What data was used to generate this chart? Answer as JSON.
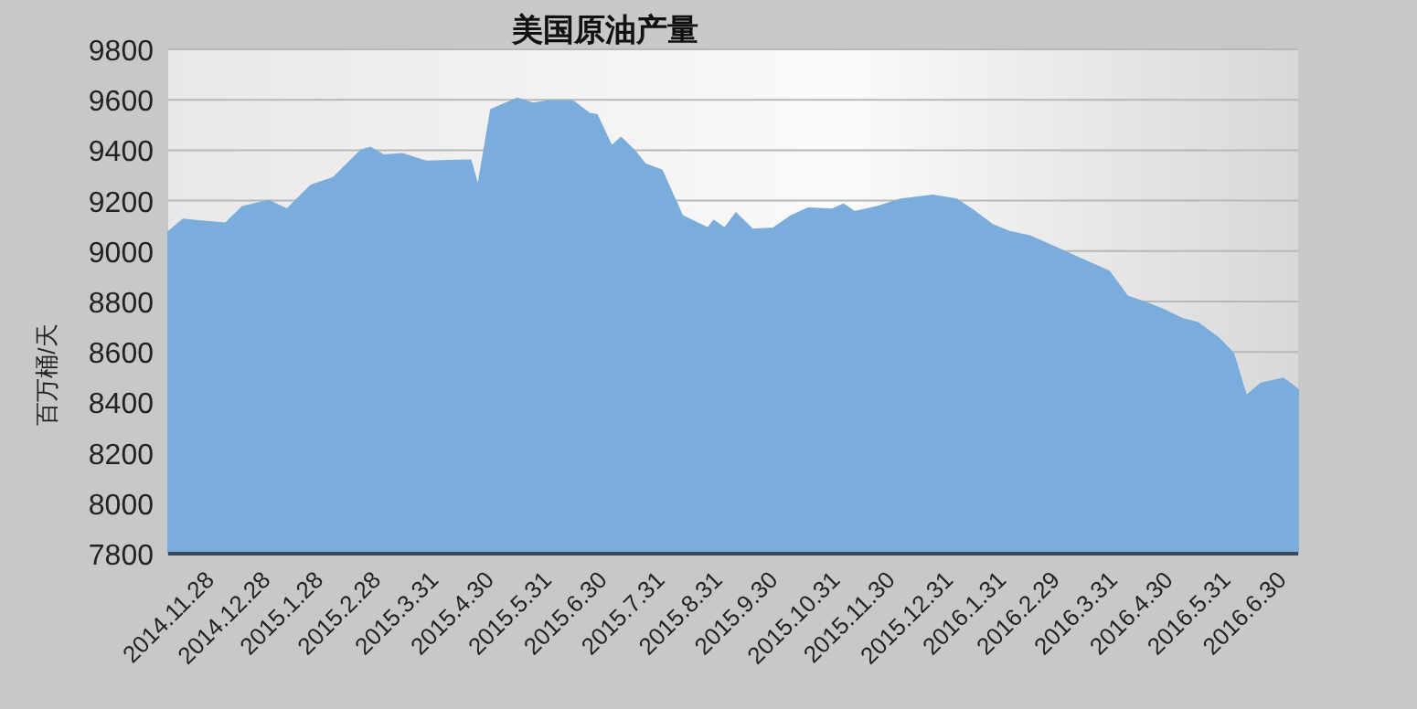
{
  "chart_data": {
    "type": "area",
    "title": "美国原油产量",
    "ylabel": "百万桶/天",
    "color": "#7aaddc",
    "grid": "y",
    "x": [
      "2014-11-28",
      "2014-12-06",
      "2014-12-13",
      "2014-12-29",
      "2015-01-07",
      "2015-01-21",
      "2015-01-31",
      "2015-02-13",
      "2015-02-25",
      "2015-03-12",
      "2015-03-17",
      "2015-03-24",
      "2015-04-03",
      "2015-04-16",
      "2015-05-10",
      "2015-05-14",
      "2015-05-21",
      "2015-06-04",
      "2015-06-13",
      "2015-06-21",
      "2015-07-04",
      "2015-07-13",
      "2015-07-17",
      "2015-07-25",
      "2015-07-30",
      "2015-08-06",
      "2015-08-12",
      "2015-08-21",
      "2015-09-01",
      "2015-09-15",
      "2015-09-18",
      "2015-09-24",
      "2015-09-30",
      "2015-10-09",
      "2015-10-20",
      "2015-10-30",
      "2015-11-08",
      "2015-11-21",
      "2015-11-27",
      "2015-12-03",
      "2015-12-15",
      "2015-12-28",
      "2016-01-14",
      "2016-01-27",
      "2016-02-05",
      "2016-02-15",
      "2016-02-25",
      "2016-03-06",
      "2016-03-20",
      "2016-04-04",
      "2016-04-18",
      "2016-04-28",
      "2016-05-08",
      "2016-05-18",
      "2016-05-28",
      "2016-06-05",
      "2016-06-16",
      "2016-06-24",
      "2016-07-01",
      "2016-07-09",
      "2016-07-21",
      "2016-07-29"
    ],
    "values": [
      9075,
      9125,
      9120,
      9110,
      9175,
      9200,
      9165,
      9260,
      9290,
      9400,
      9410,
      9380,
      9385,
      9355,
      9360,
      9255,
      9560,
      9605,
      9585,
      9595,
      9595,
      9545,
      9540,
      9415,
      9450,
      9400,
      9345,
      9320,
      9140,
      9090,
      9120,
      9090,
      9150,
      9085,
      9090,
      9140,
      9170,
      9165,
      9185,
      9155,
      9175,
      9205,
      9220,
      9205,
      9160,
      9105,
      9075,
      9060,
      9015,
      8965,
      8920,
      8820,
      8795,
      8765,
      8730,
      8715,
      8655,
      8595,
      8425,
      8475,
      8495,
      8450
    ],
    "xlim": [
      "2014-11-28",
      "2016-07-29"
    ],
    "xticks": [
      {
        "value": "2014-11-28",
        "label": "2014.11.28"
      },
      {
        "value": "2014-12-28",
        "label": "2014.12.28"
      },
      {
        "value": "2015-01-28",
        "label": "2015.1.28"
      },
      {
        "value": "2015-02-28",
        "label": "2015.2.28"
      },
      {
        "value": "2015-03-31",
        "label": "2015.3.31"
      },
      {
        "value": "2015-04-30",
        "label": "2015.4.30"
      },
      {
        "value": "2015-05-31",
        "label": "2015.5.31"
      },
      {
        "value": "2015-06-30",
        "label": "2015.6.30"
      },
      {
        "value": "2015-07-31",
        "label": "2015.7.31"
      },
      {
        "value": "2015-08-31",
        "label": "2015.8.31"
      },
      {
        "value": "2015-09-30",
        "label": "2015.9.30"
      },
      {
        "value": "2015-10-31",
        "label": "2015.10.31"
      },
      {
        "value": "2015-11-30",
        "label": "2015.11.30"
      },
      {
        "value": "2015-12-31",
        "label": "2015.12.31"
      },
      {
        "value": "2016-01-31",
        "label": "2016.1.31"
      },
      {
        "value": "2016-02-29",
        "label": "2016.2.29"
      },
      {
        "value": "2016-03-31",
        "label": "2016.3.31"
      },
      {
        "value": "2016-04-30",
        "label": "2016.4.30"
      },
      {
        "value": "2016-05-31",
        "label": "2016.5.31"
      },
      {
        "value": "2016-06-30",
        "label": "2016.6.30"
      }
    ],
    "ylim": [
      7800,
      9800
    ],
    "yticks": [
      7800,
      8000,
      8200,
      8400,
      8600,
      8800,
      9000,
      9200,
      9400,
      9600,
      9800
    ]
  }
}
